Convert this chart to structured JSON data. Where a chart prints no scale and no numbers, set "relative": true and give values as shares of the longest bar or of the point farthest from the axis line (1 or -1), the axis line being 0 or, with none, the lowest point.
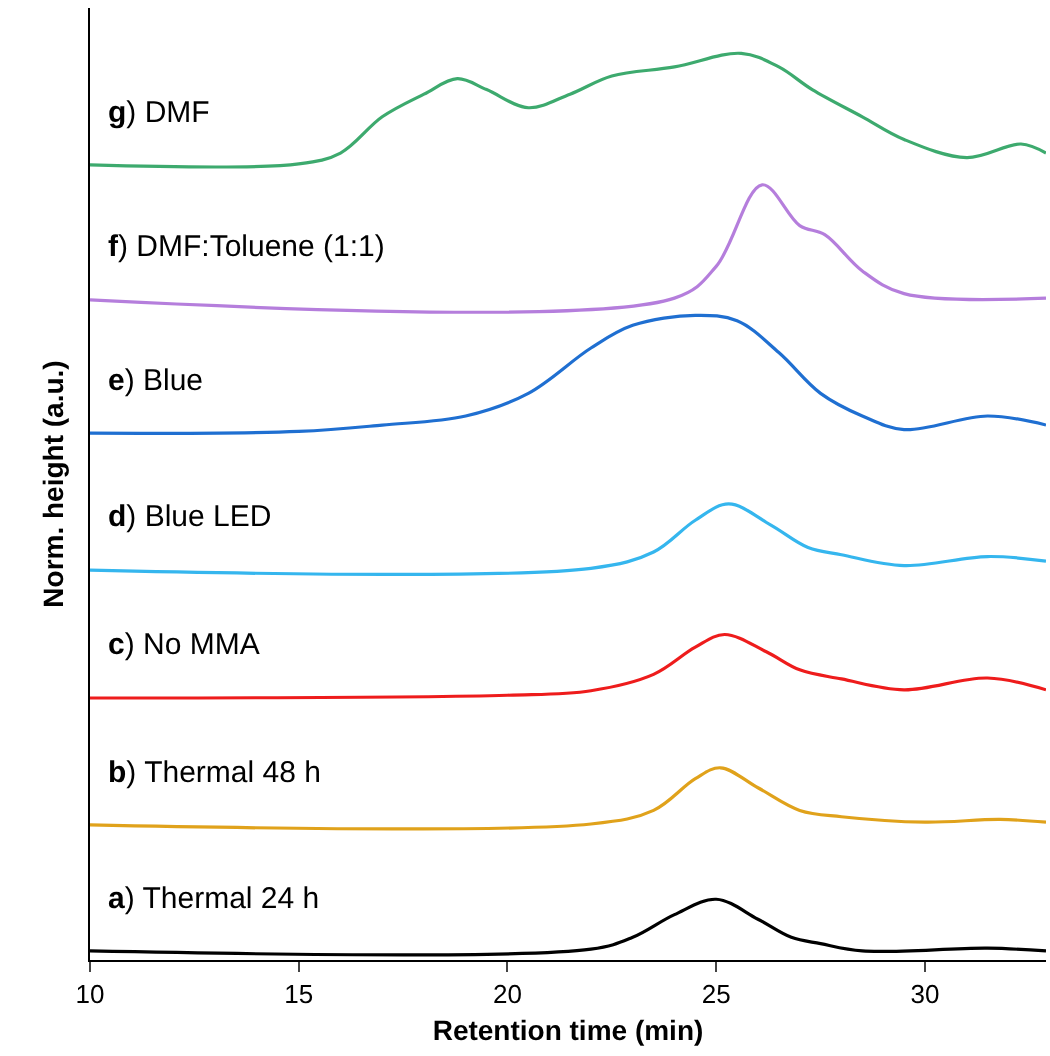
{
  "chart_data": {
    "type": "line",
    "relative": true,
    "xlabel": "Retention time (min)",
    "ylabel": "Norm. height (a.u.)",
    "xlim": [
      10,
      32.9
    ],
    "xticks": [
      10,
      15,
      20,
      25,
      30
    ],
    "legend": false,
    "marker": "none",
    "line_style": "solid",
    "series": [
      {
        "name": "a) Thermal 24 h",
        "color": "#000000",
        "x": [
          10,
          22,
          23,
          24,
          25,
          26,
          26.8,
          27.5,
          28.5,
          31.5,
          32.9
        ],
        "values": [
          0.01,
          0.012,
          0.025,
          0.05,
          0.067,
          0.045,
          0.025,
          0.018,
          0.01,
          0.013,
          0.01
        ]
      },
      {
        "name": "b) Thermal 48 h",
        "color": "#e0a21b",
        "x": [
          10,
          22,
          23.5,
          24.5,
          25.1,
          26,
          27,
          28,
          30,
          31.8,
          32.9
        ],
        "values": [
          0.149,
          0.15,
          0.165,
          0.2,
          0.212,
          0.19,
          0.165,
          0.158,
          0.152,
          0.155,
          0.152
        ]
      },
      {
        "name": "c) No MMA",
        "color": "#ee1c1c",
        "x": [
          10,
          20,
          22,
          23.5,
          24.5,
          25.2,
          26.2,
          27,
          28,
          29.5,
          31.5,
          32.9
        ],
        "values": [
          0.289,
          0.292,
          0.297,
          0.315,
          0.345,
          0.359,
          0.34,
          0.32,
          0.31,
          0.298,
          0.311,
          0.298
        ]
      },
      {
        "name": "d) Blue LED",
        "color": "#35b6ee",
        "x": [
          10,
          22,
          23.5,
          24.5,
          25.3,
          26.3,
          27.2,
          28,
          29.5,
          31.5,
          32.9
        ],
        "values": [
          0.43,
          0.432,
          0.45,
          0.485,
          0.503,
          0.48,
          0.455,
          0.447,
          0.435,
          0.445,
          0.44
        ]
      },
      {
        "name": "e) Blue",
        "color": "#1f6fd1",
        "x": [
          10,
          15,
          17,
          19,
          20.5,
          22,
          23,
          24.5,
          25.5,
          26.5,
          27.5,
          28.5,
          29.5,
          31.5,
          32.9
        ],
        "values": [
          0.581,
          0.583,
          0.59,
          0.6,
          0.625,
          0.675,
          0.7,
          0.711,
          0.705,
          0.67,
          0.625,
          0.6,
          0.585,
          0.6,
          0.59
        ]
      },
      {
        "name": "f) DMF:Toluene (1:1)",
        "color": "#b57edc",
        "x": [
          10,
          24,
          25,
          26.1,
          27,
          27.6,
          28.5,
          29.5,
          32.9
        ],
        "values": [
          0.728,
          0.73,
          0.765,
          0.855,
          0.81,
          0.8,
          0.76,
          0.735,
          0.73
        ]
      },
      {
        "name": "g) DMF",
        "color": "#3daa6e",
        "x": [
          10,
          15,
          16,
          17,
          18,
          18.8,
          19.5,
          20.5,
          21.5,
          22.5,
          24,
          25.6,
          26.5,
          27.3,
          28.5,
          29.5,
          31,
          32.3,
          32.9
        ],
        "values": [
          0.877,
          0.878,
          0.89,
          0.93,
          0.955,
          0.972,
          0.96,
          0.94,
          0.955,
          0.975,
          0.985,
          1.0,
          0.985,
          0.96,
          0.93,
          0.905,
          0.885,
          0.9,
          0.89
        ]
      }
    ]
  }
}
